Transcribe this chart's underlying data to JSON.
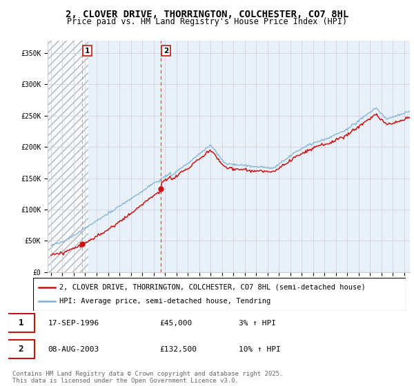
{
  "title": "2, CLOVER DRIVE, THORRINGTON, COLCHESTER, CO7 8HL",
  "subtitle": "Price paid vs. HM Land Registry's House Price Index (HPI)",
  "ylabel_ticks": [
    "£0",
    "£50K",
    "£100K",
    "£150K",
    "£200K",
    "£250K",
    "£300K",
    "£350K"
  ],
  "ytick_values": [
    0,
    50000,
    100000,
    150000,
    200000,
    250000,
    300000,
    350000
  ],
  "ylim": [
    0,
    370000
  ],
  "xlim_start": 1993.7,
  "xlim_end": 2025.5,
  "hpi_color": "#7ab0d4",
  "price_color": "#cc1111",
  "marker_color": "#cc1111",
  "sale1_x": 1996.72,
  "sale1_y": 45000,
  "sale1_label": "1",
  "sale1_vline_color": "#cc8888",
  "sale1_vline_style": "--",
  "sale2_x": 2003.62,
  "sale2_y": 132500,
  "sale2_label": "2",
  "sale2_vline_color": "#ee4444",
  "sale2_vline_style": "--",
  "hatch_end": 1997.3,
  "bg_color": "#e8f0f8",
  "grid_color": "#ccccdd",
  "legend_line1": "2, CLOVER DRIVE, THORRINGTON, COLCHESTER, CO7 8HL (semi-detached house)",
  "legend_line2": "HPI: Average price, semi-detached house, Tendring",
  "table_rows": [
    {
      "num": "1",
      "date": "17-SEP-1996",
      "price": "£45,000",
      "hpi": "3% ↑ HPI"
    },
    {
      "num": "2",
      "date": "08-AUG-2003",
      "price": "£132,500",
      "hpi": "10% ↑ HPI"
    }
  ],
  "footer": "Contains HM Land Registry data © Crown copyright and database right 2025.\nThis data is licensed under the Open Government Licence v3.0.",
  "title_fontsize": 10,
  "subtitle_fontsize": 8.5,
  "tick_fontsize": 7,
  "legend_fontsize": 7.5,
  "table_fontsize": 8,
  "footer_fontsize": 6.5
}
